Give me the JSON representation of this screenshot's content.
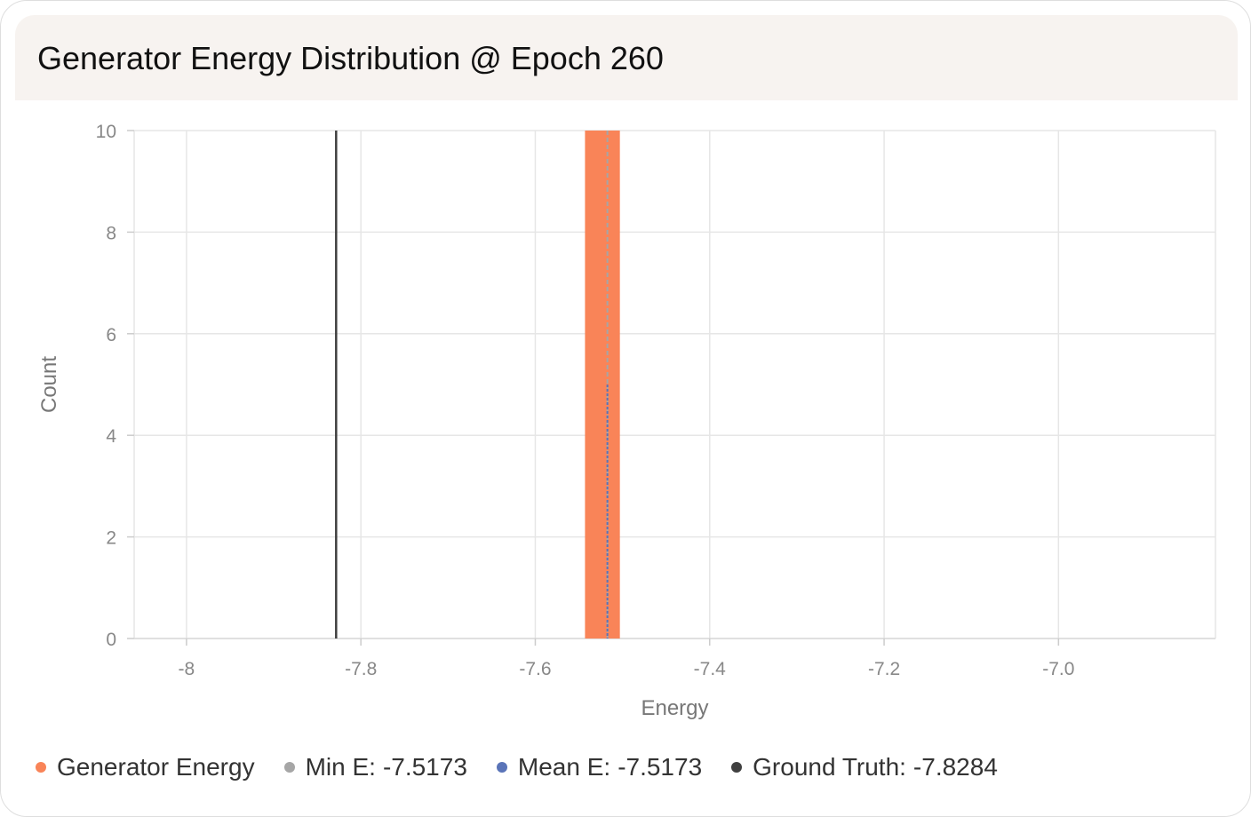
{
  "card": {
    "title": "Generator Energy Distribution @ Epoch 260"
  },
  "colors": {
    "generator": "#f98458",
    "min": "#a6a6a6",
    "mean": "#5a74b8",
    "ground_truth": "#404040",
    "grid": "#e6e6e6",
    "tick_text": "#888888",
    "axis_label": "#777777"
  },
  "icons": {
    "legend_marker": "filled-circle"
  },
  "legend": [
    {
      "label": "Generator Energy",
      "value": ""
    },
    {
      "label": "Min E:",
      "value": "-7.5173"
    },
    {
      "label": "Mean E:",
      "value": "-7.5173"
    },
    {
      "label": "Ground Truth:",
      "value": "-7.8284"
    }
  ],
  "chart_data": {
    "type": "bar",
    "xlabel": "Energy",
    "ylabel": "Count",
    "xlim": [
      -8.06,
      -6.82
    ],
    "ylim": [
      0,
      10
    ],
    "grid": true,
    "x_ticks": [
      -8,
      -7.8,
      -7.6,
      -7.4,
      -7.2,
      -7.0
    ],
    "x_tick_labels": [
      "-8",
      "-7.8",
      "-7.6",
      "-7.4",
      "-7.2",
      "-7.0"
    ],
    "y_ticks": [
      0,
      2,
      4,
      6,
      8,
      10
    ],
    "y_tick_labels": [
      "0",
      "2",
      "4",
      "6",
      "8",
      "10"
    ],
    "series": [
      {
        "name": "Generator Energy",
        "bins": [
          {
            "x0": -7.543,
            "x1": -7.503,
            "count": 10
          }
        ]
      }
    ],
    "reference_lines": [
      {
        "name": "Min E",
        "x": -7.5173,
        "style": "dashed"
      },
      {
        "name": "Mean E",
        "x": -7.5173,
        "style": "dotted"
      },
      {
        "name": "Ground Truth",
        "x": -7.8284,
        "style": "solid"
      }
    ],
    "legend_position": "bottom"
  }
}
